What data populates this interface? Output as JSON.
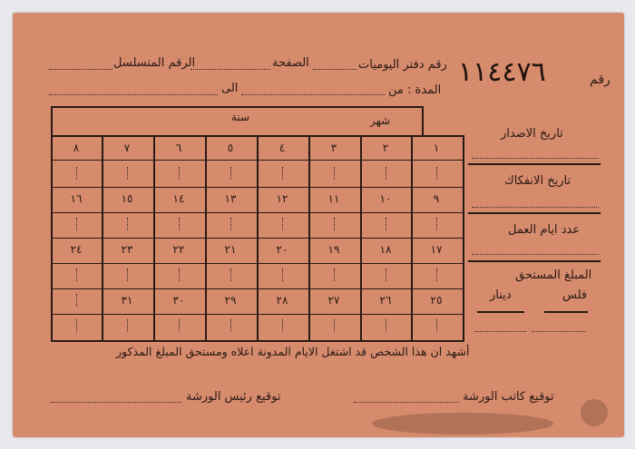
{
  "header": {
    "label_number": "رقم",
    "serial_number": "١١٤٤٧٦",
    "ledger_number_label": "رقم دفتر اليوميات",
    "page_label": "الصفحة",
    "serial_label": "الرقم المتسلسل",
    "period_label": "المدة : من",
    "to_label": "الى"
  },
  "grid": {
    "month_label": "شهر",
    "year_label": "سنة",
    "rows": [
      [
        "١",
        "٢",
        "٣",
        "٤",
        "٥",
        "٦",
        "٧",
        "٨"
      ],
      [
        "٩",
        "١٠",
        "١١",
        "١٢",
        "١٣",
        "١٤",
        "١٥",
        "١٦"
      ],
      [
        "١٧",
        "١٨",
        "١٩",
        "٢٠",
        "٢١",
        "٢٢",
        "٢٣",
        "٢٤"
      ],
      [
        "٢٥",
        "٢٦",
        "٢٧",
        "٢٨",
        "٢٩",
        "٣٠",
        "٣١",
        ""
      ]
    ]
  },
  "side": {
    "issue_date": "تاريخ الاصدار",
    "separation_date": "تاريخ الانفكاك",
    "work_days": "عدد ايام العمل",
    "amount_due": "المبلغ المستحق",
    "fils": "فلس",
    "dinar": "دينار"
  },
  "footer": {
    "certification": "أشهد ان هذا الشخص قد اشتغل الايام المدونة اعلاه ومستحق المبلغ المذكور",
    "clerk_signature": "توقيع كاتب الورشة",
    "head_signature": "توقيع رئيس الورشة"
  },
  "colors": {
    "card": "#d68b6d",
    "ink": "#2a1a14",
    "background": "#e9e8ec"
  }
}
